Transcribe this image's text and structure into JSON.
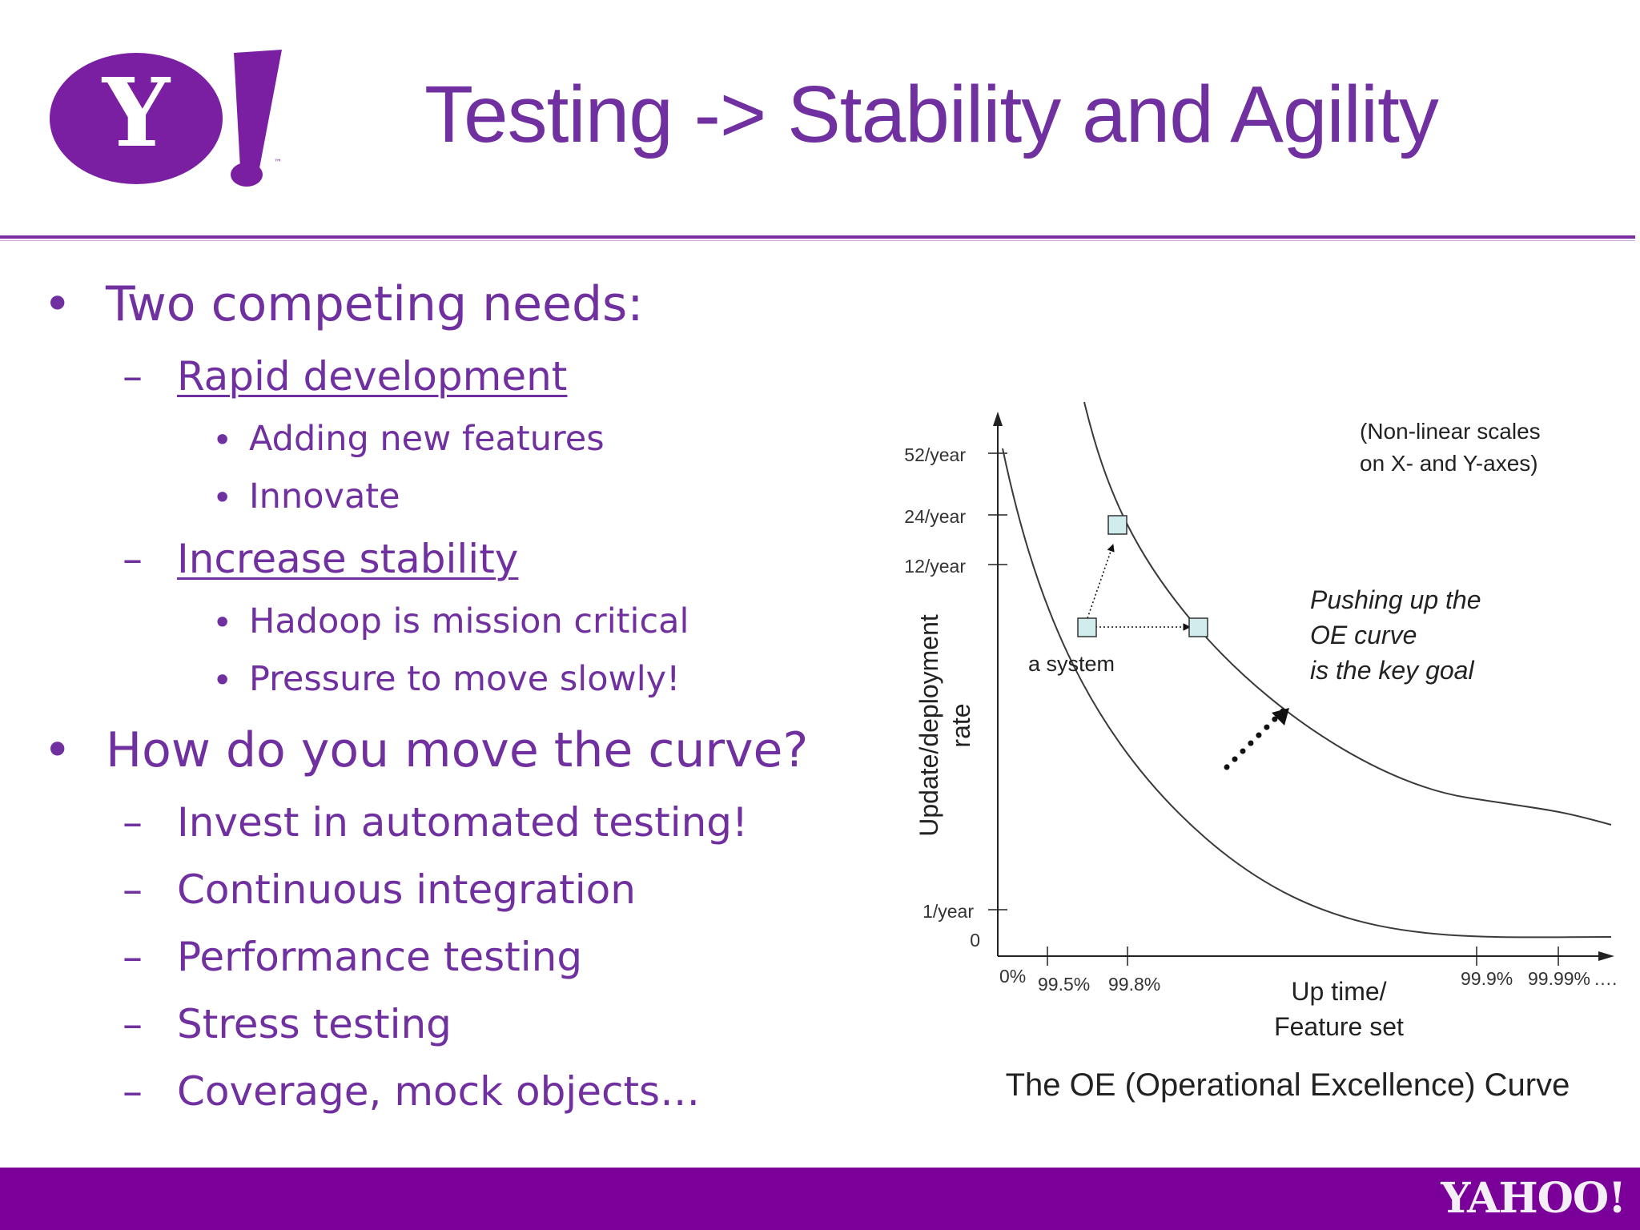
{
  "header": {
    "logo_letter": "Y",
    "logo_mark": "!",
    "logo_tm": "™",
    "title": "Testing -> Stability and Agility"
  },
  "bullets": {
    "b1": "Two competing needs:",
    "b1_1": "Rapid development",
    "b1_1_1": "Adding new features",
    "b1_1_2": "Innovate",
    "b1_2": "Increase stability",
    "b1_2_1": "Hadoop is mission critical",
    "b1_2_2": "Pressure to move slowly!",
    "b2": "How do you move the curve?",
    "b2_1": "Invest in automated testing!",
    "b2_2": "Continuous integration",
    "b2_3": "Performance testing",
    "b2_4": "Stress testing",
    "b2_5": "Coverage, mock objects…",
    "marker_round": "•",
    "marker_dash": "–"
  },
  "chart_data": {
    "type": "line",
    "title": "The OE (Operational Excellence) Curve",
    "note": [
      "(Non-linear scales",
      "on X- and Y-axes)"
    ],
    "annotation": [
      "Pushing up the",
      "OE curve",
      "is the key goal"
    ],
    "point_label": "a system",
    "xlabel": [
      "Up time/",
      "Feature set"
    ],
    "ylabel": [
      "Update/deployment",
      "rate"
    ],
    "x_ticks": [
      "0%",
      "99.5%",
      "99.8%",
      "99.9%",
      "99.99%",
      "…."
    ],
    "y_ticks": [
      "0",
      "1/year",
      "12/year",
      "24/year",
      "52/year"
    ],
    "series": [
      {
        "curve": "inner",
        "points": [
          [
            "99.3%",
            "52/year"
          ],
          [
            "99.5%",
            "12/year"
          ],
          [
            "99.6%",
            "6/year"
          ],
          [
            "99.8%",
            "3/year"
          ],
          [
            "99.9%",
            "1.5/year"
          ],
          [
            "99.99%",
            "0.5/year"
          ]
        ]
      },
      {
        "curve": "outer",
        "points": [
          [
            "99.6%",
            "52/year"
          ],
          [
            "99.8%",
            "24/year"
          ],
          [
            "99.85%",
            "12/year"
          ],
          [
            "99.9%",
            "6/year"
          ],
          [
            "99.99%",
            "3/year"
          ]
        ]
      }
    ],
    "markers": [
      {
        "label": "a system",
        "x": "99.6%",
        "y": "10/year"
      },
      {
        "x": "99.8%",
        "y": "24/year"
      },
      {
        "x": "99.85%",
        "y": "10/year"
      }
    ],
    "colors": {
      "curve": "#3a3a3a",
      "marker_fill": "#d0ecec",
      "arrow": "#111111"
    }
  },
  "footer": {
    "logo": "YAHOO!",
    "background": "#7b0099"
  },
  "theme": {
    "accent": "#7030a0"
  }
}
